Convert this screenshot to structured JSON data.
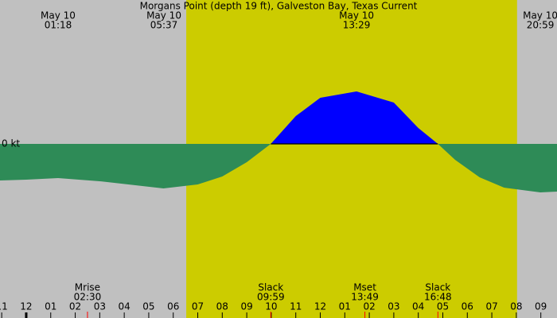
{
  "chart_data": {
    "type": "area",
    "title": "Morgans Point (depth 19 ft), Galveston Bay, Texas Current",
    "x": [
      -1.07,
      0,
      1.3,
      3,
      5.6,
      7,
      8,
      9,
      9.98,
      11,
      12,
      13.48,
      15,
      16,
      16.8,
      17.5,
      18.5,
      19.5,
      20.98,
      21.66
    ],
    "values": [
      -0.46,
      -0.45,
      -0.43,
      -0.47,
      -0.56,
      -0.51,
      -0.41,
      -0.23,
      0,
      0.35,
      0.58,
      0.66,
      0.52,
      0.2,
      0,
      -0.2,
      -0.42,
      -0.55,
      -0.61,
      -0.6
    ],
    "flood_color": "#0000ff",
    "ebb_color": "#2e8b57",
    "night_color": "#c0c0c0",
    "day_color": "#cccc00",
    "day_span": [
      6.53,
      20.03
    ],
    "xlim": [
      -1.07,
      21.66
    ],
    "ylim": [
      -2.19,
      1.81
    ],
    "yticks": [
      {
        "value": 0,
        "label": "0 kt"
      }
    ],
    "xticks": [
      {
        "value": -1,
        "label": "11"
      },
      {
        "value": 0,
        "label": "12"
      },
      {
        "value": 1,
        "label": "01"
      },
      {
        "value": 2,
        "label": "02"
      },
      {
        "value": 3,
        "label": "03"
      },
      {
        "value": 4,
        "label": "04"
      },
      {
        "value": 5,
        "label": "05"
      },
      {
        "value": 6,
        "label": "06"
      },
      {
        "value": 7,
        "label": "07"
      },
      {
        "value": 8,
        "label": "08"
      },
      {
        "value": 9,
        "label": "09"
      },
      {
        "value": 10,
        "label": "10"
      },
      {
        "value": 11,
        "label": "11"
      },
      {
        "value": 12,
        "label": "12"
      },
      {
        "value": 13,
        "label": "01"
      },
      {
        "value": 14,
        "label": "02"
      },
      {
        "value": 15,
        "label": "03"
      },
      {
        "value": 16,
        "label": "04"
      },
      {
        "value": 17,
        "label": "05"
      },
      {
        "value": 18,
        "label": "06"
      },
      {
        "value": 19,
        "label": "07"
      },
      {
        "value": 20,
        "label": "08"
      },
      {
        "value": 21,
        "label": "09"
      }
    ],
    "top_events": [
      {
        "x": 1.3,
        "date": "May 10",
        "time": "01:18"
      },
      {
        "x": 5.62,
        "date": "May 10",
        "time": "05:37"
      },
      {
        "x": 13.48,
        "date": "May 10",
        "time": "13:29"
      },
      {
        "x": 20.98,
        "date": "May 10",
        "time": "20:59"
      }
    ],
    "bottom_events": [
      {
        "x": 2.5,
        "name": "Mrise",
        "time": "02:30"
      },
      {
        "x": 9.98,
        "name": "Slack",
        "time": "09:59"
      },
      {
        "x": 13.82,
        "name": "Mset",
        "time": "13:49"
      },
      {
        "x": 16.8,
        "name": "Slack",
        "time": "16:48"
      }
    ]
  }
}
